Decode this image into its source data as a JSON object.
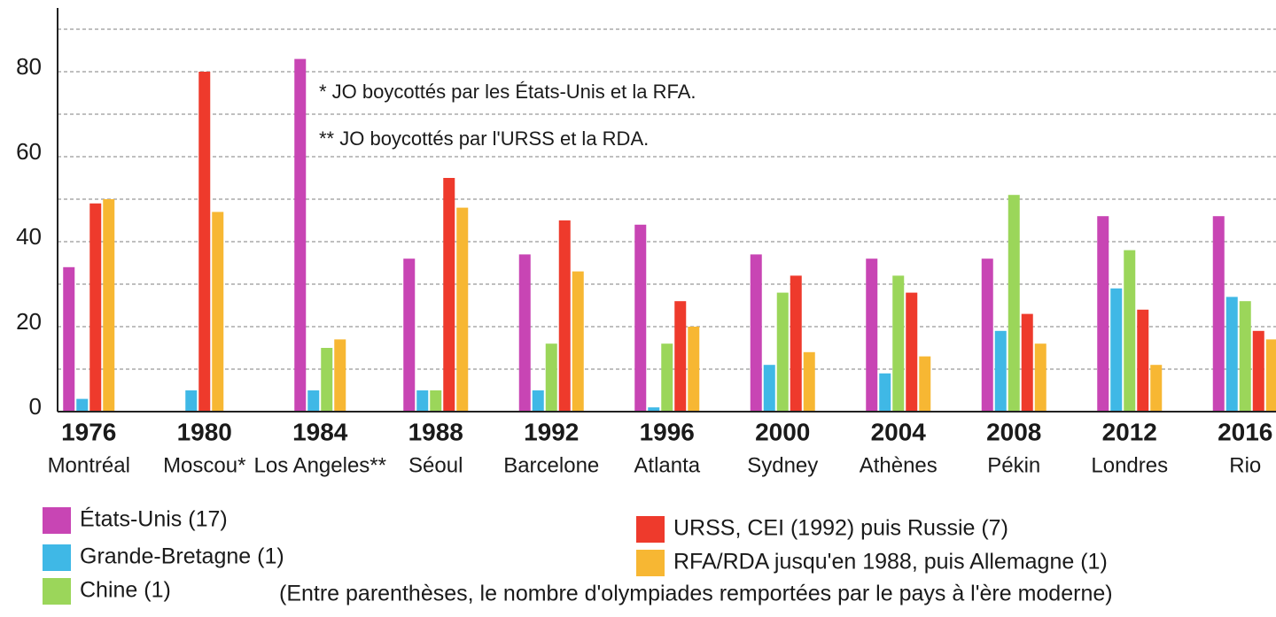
{
  "chart_data": {
    "type": "bar",
    "categories": [
      "1976",
      "1980",
      "1984",
      "1988",
      "1992",
      "1996",
      "2000",
      "2004",
      "2008",
      "2012",
      "2016"
    ],
    "category_sublabels": [
      "Montréal",
      "Moscou*",
      "Los Angeles**",
      "Séoul",
      "Barcelone",
      "Atlanta",
      "Sydney",
      "Athènes",
      "Pékin",
      "Londres",
      "Rio"
    ],
    "series": [
      {
        "name": "États-Unis (17)",
        "color": "#c845b4",
        "values": [
          34,
          null,
          83,
          36,
          37,
          44,
          37,
          36,
          36,
          46,
          46
        ]
      },
      {
        "name": "Grande-Bretagne (1)",
        "color": "#3fb8e6",
        "values": [
          3,
          5,
          5,
          5,
          5,
          1,
          11,
          9,
          19,
          29,
          27
        ]
      },
      {
        "name": "Chine (1)",
        "color": "#9bd65a",
        "values": [
          null,
          null,
          15,
          5,
          16,
          16,
          28,
          32,
          51,
          38,
          26
        ]
      },
      {
        "name": "URSS, CEI (1992) puis Russie (7)",
        "color": "#ee3a2c",
        "values": [
          49,
          80,
          null,
          55,
          45,
          26,
          32,
          28,
          23,
          24,
          19
        ]
      },
      {
        "name": "RFA/RDA jusqu'en 1988, puis Allemagne (1)",
        "color": "#f7b733",
        "values": [
          50,
          47,
          17,
          48,
          33,
          20,
          14,
          13,
          16,
          11,
          17
        ]
      }
    ],
    "ylim": [
      0,
      95
    ],
    "yticks": [
      0,
      20,
      40,
      60,
      80
    ],
    "minor_yticks": [
      10,
      30,
      50,
      70,
      90
    ],
    "grid": true,
    "annotations": [
      "* JO boycottés par les États-Unis et la RFA.",
      "** JO boycottés par l'URSS et la RDA."
    ],
    "note": "(Entre parenthèses, le nombre d'olympiades remportées par le pays à l'ère moderne)"
  }
}
